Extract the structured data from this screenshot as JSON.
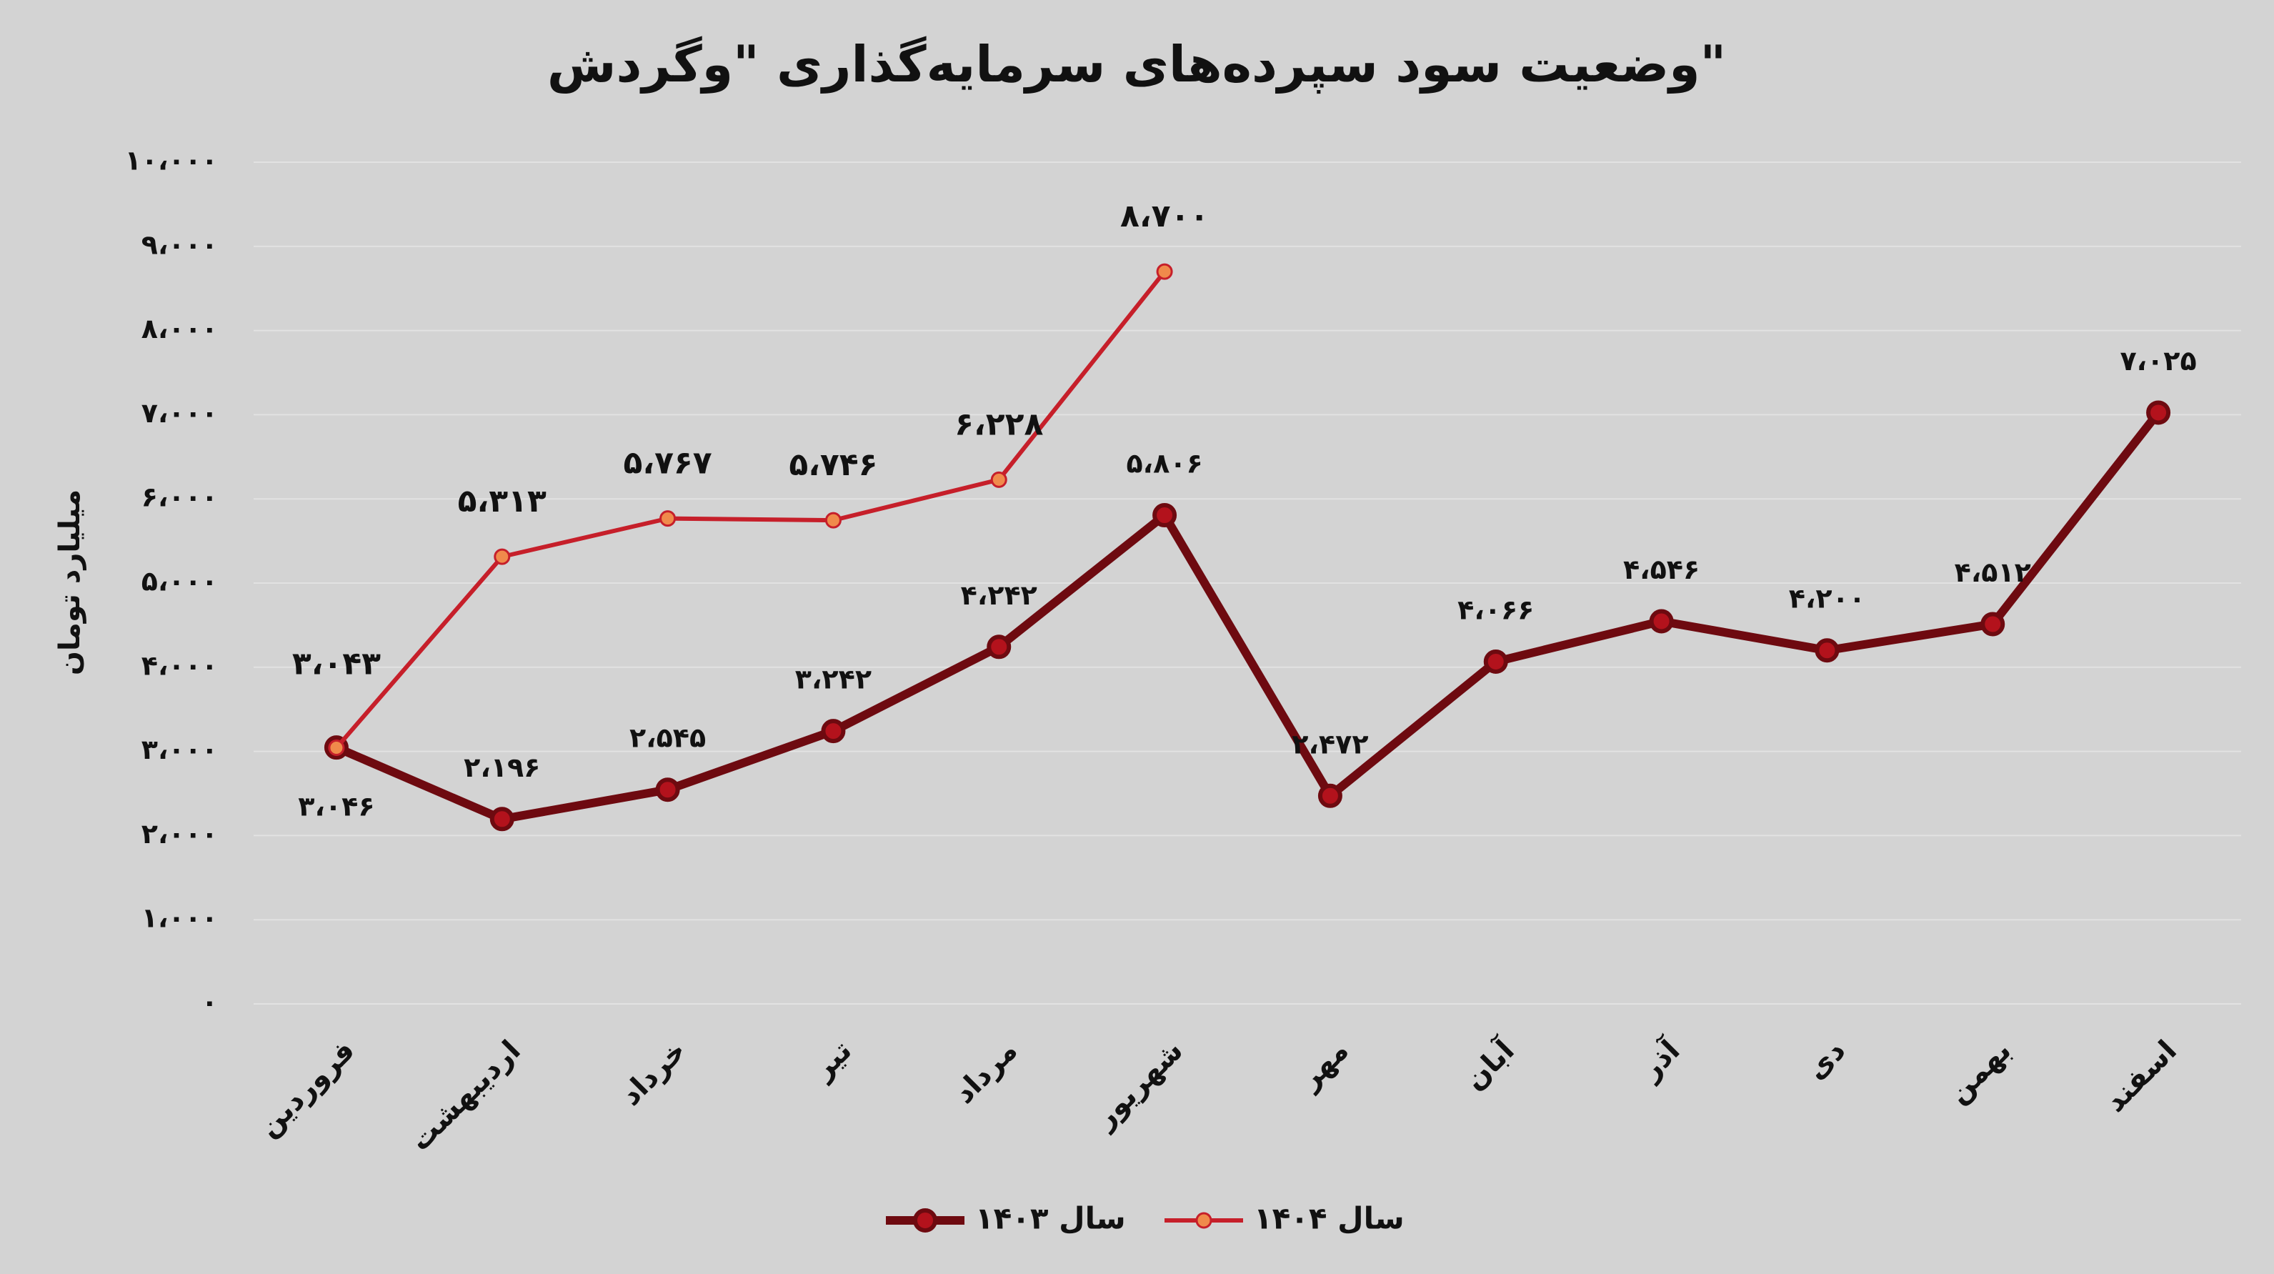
{
  "chart_data": {
    "type": "line",
    "title": "وضعیت سود سپرده‌های سرمایه‌گذاری \"وگردش\"",
    "y_label": "میلیارد تومان",
    "categories": [
      "فروردین",
      "اردیبهشت",
      "خرداد",
      "تیر",
      "مرداد",
      "شهریور",
      "مهر",
      "آبان",
      "آذر",
      "دی",
      "بهمن",
      "اسفند"
    ],
    "series": [
      {
        "name": "سال ۱۴۰۳",
        "color": "#6e0a10",
        "marker_color": "#b3121c",
        "values": [
          3046,
          2196,
          2545,
          3242,
          4242,
          5806,
          2472,
          4066,
          4546,
          4200,
          4512,
          7025
        ],
        "value_labels": [
          "۳،۰۴۶",
          "۲،۱۹۶",
          "۲،۵۴۵",
          "۳،۲۴۲",
          "۴،۲۴۲",
          "۵،۸۰۶",
          "۲،۴۷۲",
          "۴،۰۶۶",
          "۴،۵۴۶",
          "۴،۲۰۰",
          "۴،۵۱۲",
          "۷،۰۲۵"
        ]
      },
      {
        "name": "سال ۱۴۰۴",
        "color": "#c61f2a",
        "marker_color": "#f08a4b",
        "values": [
          3043,
          5313,
          5767,
          5746,
          6228,
          8700,
          null,
          null,
          null,
          null,
          null,
          null
        ],
        "value_labels": [
          "۳،۰۴۳",
          "۵،۳۱۳",
          "۵،۷۶۷",
          "۵،۷۴۶",
          "۶،۲۲۸",
          "۸،۷۰۰",
          null,
          null,
          null,
          null,
          null,
          null
        ]
      }
    ],
    "ylim": [
      0,
      10000
    ],
    "yticks": [
      {
        "value": 0,
        "label": "۰"
      },
      {
        "value": 1000,
        "label": "۱،۰۰۰"
      },
      {
        "value": 2000,
        "label": "۲،۰۰۰"
      },
      {
        "value": 3000,
        "label": "۳،۰۰۰"
      },
      {
        "value": 4000,
        "label": "۴،۰۰۰"
      },
      {
        "value": 5000,
        "label": "۵،۰۰۰"
      },
      {
        "value": 6000,
        "label": "۶،۰۰۰"
      },
      {
        "value": 7000,
        "label": "۷،۰۰۰"
      },
      {
        "value": 8000,
        "label": "۸،۰۰۰"
      },
      {
        "value": 9000,
        "label": "۹،۰۰۰"
      },
      {
        "value": 10000,
        "label": "۱۰،۰۰۰"
      }
    ],
    "grid": true,
    "legend": "bottom"
  }
}
